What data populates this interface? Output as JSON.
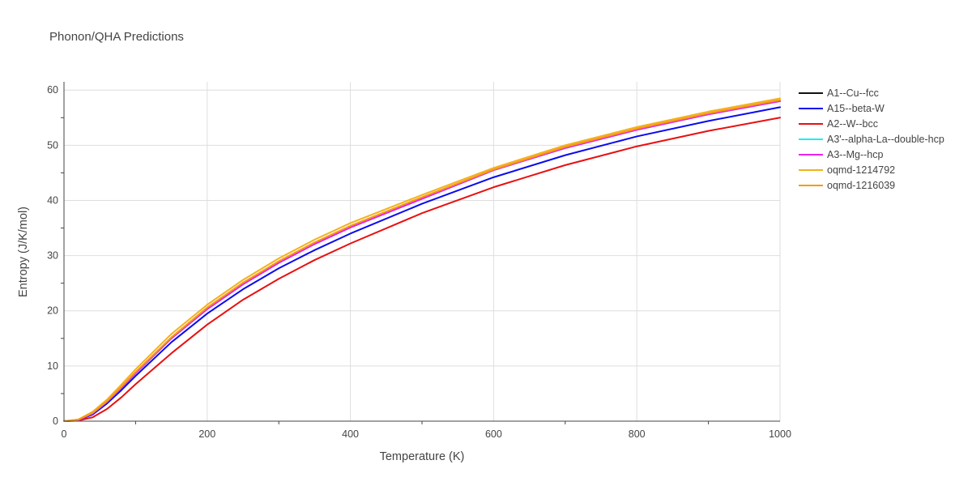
{
  "chart_data": {
    "type": "line",
    "title": "Phonon/QHA Predictions",
    "xlabel": "Temperature (K)",
    "ylabel": "Entropy (J/K/mol)",
    "xlim": [
      0,
      1000
    ],
    "ylim": [
      0,
      61.5
    ],
    "x_ticks": [
      0,
      200,
      400,
      600,
      800,
      1000
    ],
    "y_ticks": [
      0,
      10,
      20,
      30,
      40,
      50,
      60
    ],
    "grid": true,
    "legend_position": "right",
    "series": [
      {
        "name": "A1--Cu--fcc",
        "color": "#111111",
        "x": [
          0,
          20,
          40,
          60,
          80,
          100,
          150,
          200,
          250,
          300,
          350,
          400,
          500,
          600,
          700,
          800,
          900,
          1000
        ],
        "y": [
          0,
          0.2,
          1.4,
          3.5,
          6.0,
          8.7,
          15.0,
          20.3,
          24.8,
          28.7,
          32.1,
          35.1,
          40.3,
          45.5,
          49.5,
          52.8,
          55.6,
          58.0
        ]
      },
      {
        "name": "A15--beta-W",
        "color": "#0a0aef",
        "x": [
          0,
          20,
          40,
          60,
          80,
          100,
          150,
          200,
          250,
          300,
          350,
          400,
          500,
          600,
          700,
          800,
          900,
          1000
        ],
        "y": [
          0,
          0.2,
          1.2,
          3.2,
          5.6,
          8.2,
          14.3,
          19.5,
          23.9,
          27.7,
          31.0,
          34.0,
          39.4,
          44.2,
          48.2,
          51.6,
          54.4,
          56.9
        ]
      },
      {
        "name": "A2--W--bcc",
        "color": "#e81010",
        "x": [
          0,
          20,
          40,
          60,
          80,
          100,
          150,
          200,
          250,
          300,
          350,
          400,
          500,
          600,
          700,
          800,
          900,
          1000
        ],
        "y": [
          0,
          0.1,
          0.7,
          2.2,
          4.3,
          6.7,
          12.3,
          17.5,
          22.0,
          25.8,
          29.2,
          32.2,
          37.7,
          42.4,
          46.4,
          49.8,
          52.6,
          55.0
        ]
      },
      {
        "name": "A3'--alpha-La--double-hcp",
        "color": "#19f0f0",
        "x": [
          0,
          20,
          40,
          60,
          80,
          100,
          150,
          200,
          250,
          300,
          350,
          400,
          500,
          600,
          700,
          800,
          900,
          1000
        ],
        "y": [
          0,
          0.2,
          1.4,
          3.5,
          6.0,
          8.7,
          15.0,
          20.3,
          24.8,
          28.7,
          32.1,
          35.1,
          40.3,
          45.5,
          49.5,
          52.8,
          55.6,
          58.0
        ]
      },
      {
        "name": "A3--Mg--hcp",
        "color": "#ee22ee",
        "x": [
          0,
          20,
          40,
          60,
          80,
          100,
          150,
          200,
          250,
          300,
          350,
          400,
          500,
          600,
          700,
          800,
          900,
          1000
        ],
        "y": [
          0,
          0.2,
          1.4,
          3.5,
          6.0,
          8.7,
          15.0,
          20.3,
          24.8,
          28.7,
          32.1,
          35.1,
          40.3,
          45.5,
          49.5,
          52.8,
          55.6,
          58.0
        ]
      },
      {
        "name": "oqmd-1214792",
        "color": "#f2b21c",
        "x": [
          0,
          20,
          40,
          60,
          80,
          100,
          150,
          200,
          250,
          300,
          350,
          400,
          500,
          600,
          700,
          800,
          900,
          1000
        ],
        "y": [
          0,
          0.3,
          1.7,
          3.9,
          6.6,
          9.4,
          15.8,
          21.1,
          25.6,
          29.5,
          32.9,
          35.9,
          41.0,
          45.9,
          50.0,
          53.3,
          56.1,
          58.5
        ]
      },
      {
        "name": "oqmd-1216039",
        "color": "#f59a0c",
        "x": [
          0,
          20,
          40,
          60,
          80,
          100,
          150,
          200,
          250,
          300,
          350,
          400,
          500,
          600,
          700,
          800,
          900,
          1000
        ],
        "y": [
          0,
          0.3,
          1.5,
          3.6,
          6.2,
          8.9,
          15.2,
          20.6,
          25.1,
          29.0,
          32.4,
          35.4,
          40.6,
          45.6,
          49.7,
          53.0,
          55.8,
          58.2
        ]
      }
    ]
  }
}
